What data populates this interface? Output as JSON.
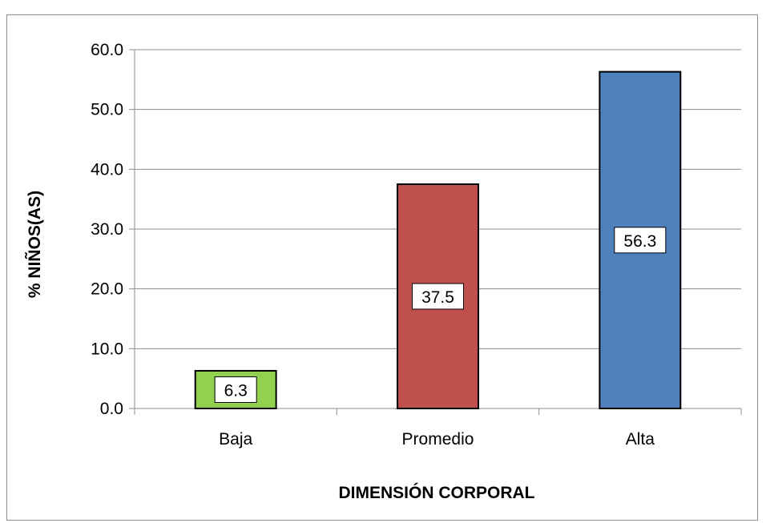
{
  "chart_data": {
    "type": "bar",
    "categories": [
      "Baja",
      "Promedio",
      "Alta"
    ],
    "values": [
      6.3,
      37.5,
      56.3
    ],
    "data_labels": [
      "6.3",
      "37.5",
      "56.3"
    ],
    "colors": [
      "#92d050",
      "#c0504d",
      "#4f81bd"
    ],
    "xlabel": "DIMENSIÓN CORPORAL",
    "ylabel": "% NIÑOS(AS)",
    "ylim": [
      0,
      60
    ],
    "yticks": [
      0,
      10,
      20,
      30,
      40,
      50,
      60
    ],
    "ytick_labels": [
      "0.0",
      "10.0",
      "20.0",
      "30.0",
      "40.0",
      "50.0",
      "60.0"
    ],
    "grid": true,
    "legend": "none"
  }
}
